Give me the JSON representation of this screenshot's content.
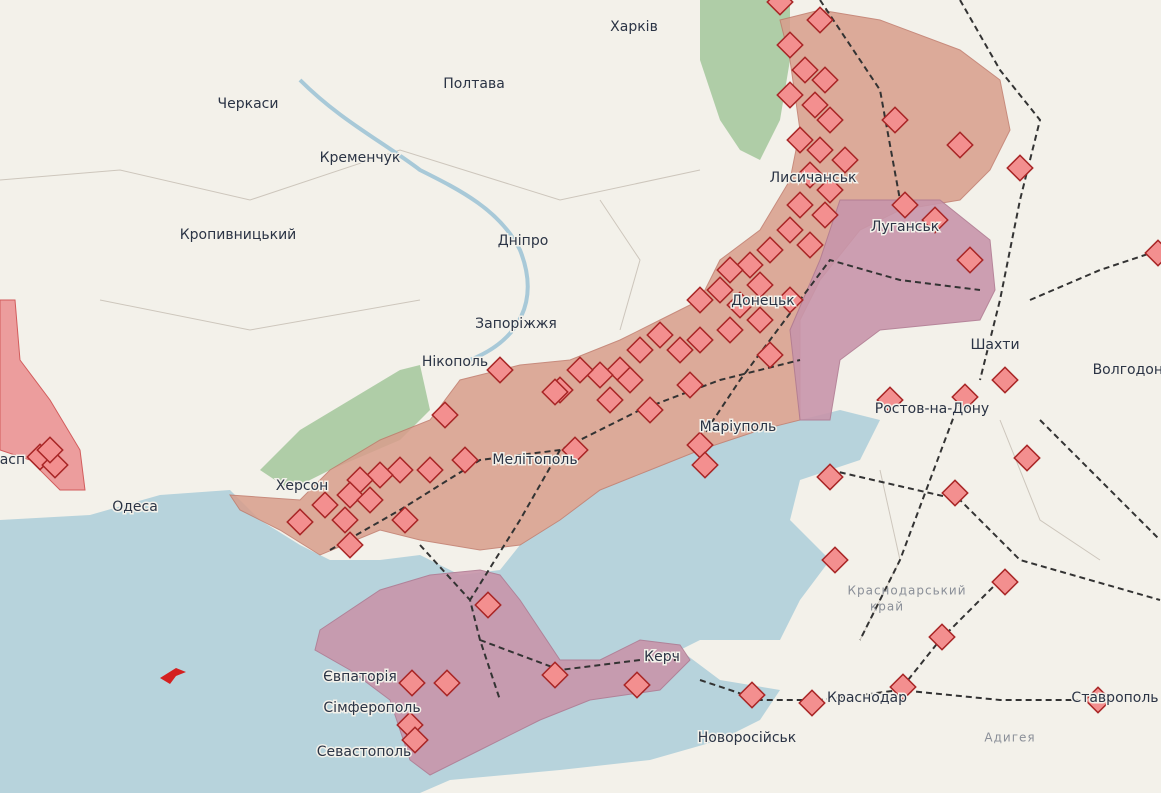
{
  "map": {
    "labels": [
      "Харків",
      "Полтава",
      "Черкаси",
      "Кременчук",
      "Кропивницький",
      "Дніпро",
      "Запоріжжя",
      "Нікополь",
      "Херсон",
      "Одеса",
      "расп",
      "Мелітополь",
      "Маріуполь",
      "Лисичанськ",
      "Луганськ",
      "Донецьк",
      "Шахти",
      "Волгодонськ",
      "Ростов-на-Дону",
      "Краснодарський",
      "край",
      "Адигея",
      "Краснодар",
      "Ставрополь",
      "Новоросійськ",
      "Керч",
      "Євпаторія",
      "Сімферополь",
      "Севастополь"
    ]
  }
}
